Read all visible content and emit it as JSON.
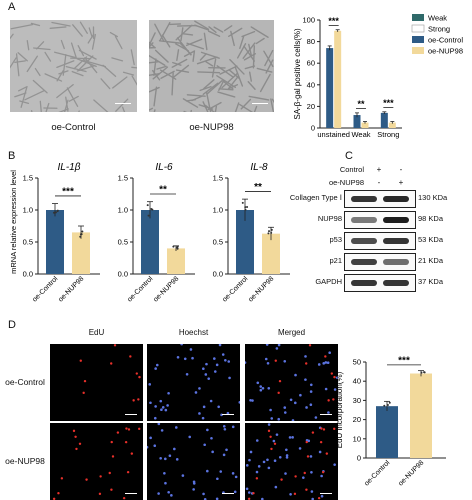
{
  "panels": {
    "A": "A",
    "B": "B",
    "C": "C",
    "D": "D"
  },
  "colors": {
    "control": "#2e5b86",
    "nup98": "#f2d99b",
    "blot": "#222222",
    "edu_red": "#e8302a",
    "hoechst_blue": "#5b73e0"
  },
  "panel_a": {
    "captions": [
      "oe-Control",
      "oe-NUP98"
    ],
    "chart_data": {
      "type": "bar",
      "ylabel": "SA-β-gal positive cells(%)",
      "categories": [
        "unstained",
        "Weak",
        "Strong"
      ],
      "ylim": [
        0,
        100
      ],
      "yticks": [
        "0",
        "20",
        "40",
        "60",
        "80",
        "100"
      ],
      "series": [
        {
          "name": "oe-Control",
          "values": [
            74,
            12,
            14
          ],
          "errors": [
            2,
            2,
            1
          ]
        },
        {
          "name": "oe-NUP98",
          "values": [
            90,
            5,
            5
          ],
          "errors": [
            1,
            1,
            1
          ]
        }
      ],
      "significance": [
        "***",
        "**",
        "***"
      ],
      "legend": [
        "Weak",
        "Strong",
        "oe-Control",
        "oe-NUP98"
      ],
      "legend_placement": "top-right"
    }
  },
  "panel_b": {
    "ylabel": "mRNA relative expression level",
    "charts": [
      {
        "title": "IL-1β",
        "categories": [
          "oe-Control",
          "oe-NUP98"
        ],
        "values": [
          1.0,
          0.65
        ],
        "errors": [
          0.1,
          0.1
        ],
        "ylim": [
          0,
          1.5
        ],
        "yticks": [
          "0.0",
          "0.5",
          "1.0",
          "1.5"
        ],
        "significance": "***"
      },
      {
        "title": "IL-6",
        "categories": [
          "oe-Control",
          "oe-NUP98"
        ],
        "values": [
          1.0,
          0.4
        ],
        "errors": [
          0.13,
          0.04
        ],
        "ylim": [
          0,
          1.5
        ],
        "yticks": [
          "0.0",
          "0.5",
          "1.0",
          "1.5"
        ],
        "significance": "**"
      },
      {
        "title": "IL-8",
        "categories": [
          "oe-Control",
          "oe-NUP98"
        ],
        "values": [
          1.0,
          0.63
        ],
        "errors": [
          0.17,
          0.1
        ],
        "ylim": [
          0,
          1.5
        ],
        "yticks": [
          "0.0",
          "0.5",
          "1.0",
          "1.5"
        ],
        "significance": "**"
      }
    ]
  },
  "panel_c": {
    "header_rows": [
      {
        "label": "Control",
        "marks": [
          "+",
          "-"
        ]
      },
      {
        "label": "oe-NUP98",
        "marks": [
          "-",
          "+"
        ]
      }
    ],
    "blots": [
      {
        "label": "Collagen Type Ⅰ",
        "kda": "130 KDa",
        "intensity": [
          0.85,
          0.9
        ]
      },
      {
        "label": "NUP98",
        "kda": "98 KDa",
        "intensity": [
          0.55,
          0.95
        ]
      },
      {
        "label": "p53",
        "kda": "53 KDa",
        "intensity": [
          0.75,
          0.85
        ]
      },
      {
        "label": "p21",
        "kda": "21 KDa",
        "intensity": [
          0.8,
          0.6
        ]
      },
      {
        "label": "GAPDH",
        "kda": "37 KDa",
        "intensity": [
          0.85,
          0.85
        ]
      }
    ]
  },
  "panel_d": {
    "column_headers": [
      "EdU",
      "Hoechst",
      "Merged"
    ],
    "row_labels": [
      "oe-Control",
      "oe-NUP98"
    ],
    "chart_data": {
      "type": "bar",
      "ylabel": "EdU incorporation(%)",
      "categories": [
        "oe-Control",
        "oe-NUP98"
      ],
      "values": [
        27,
        44
      ],
      "errors": [
        2.5,
        1.5
      ],
      "ylim": [
        0,
        50
      ],
      "yticks": [
        "0",
        "10",
        "20",
        "30",
        "40",
        "50"
      ],
      "significance": "***"
    }
  }
}
